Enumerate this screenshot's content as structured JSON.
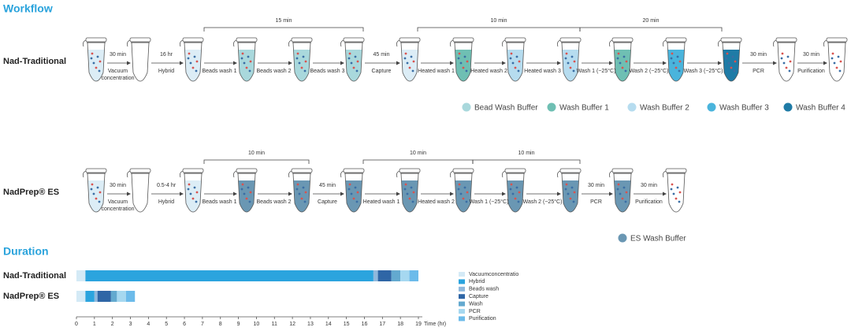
{
  "workflow": {
    "title": "Workflow",
    "traditional": {
      "label": "Nad-Traditional",
      "steps": [
        {
          "time": "30 min",
          "label": [
            "Vacuum",
            "concentration"
          ]
        },
        {
          "time": "16 hr",
          "label": [
            "Hybrid"
          ]
        },
        {
          "label": [
            "Beads wash 1"
          ]
        },
        {
          "label": [
            "Beads wash 2"
          ]
        },
        {
          "label": [
            "Beads wash 3"
          ]
        },
        {
          "time": "45 min",
          "label": [
            "Capture"
          ]
        },
        {
          "label": [
            "Heated wash 1"
          ]
        },
        {
          "label": [
            "Heated wash 2"
          ]
        },
        {
          "label": [
            "Heated wash 3"
          ]
        },
        {
          "label": [
            "Wash 1 (~25°C)"
          ]
        },
        {
          "label": [
            "Wash 2 (~25°C)"
          ]
        },
        {
          "label": [
            "Wash 3 (~25°C)"
          ]
        },
        {
          "time": "30 min",
          "label": [
            "PCR"
          ]
        },
        {
          "time": "30 min",
          "label": [
            "Purification"
          ]
        }
      ],
      "spans": [
        "15 min",
        "10 min",
        "20 min"
      ],
      "legend": [
        {
          "name": "Bead Wash Buffer",
          "color": "#a9d8dc"
        },
        {
          "name": "Wash Buffer 1",
          "color": "#6fbfb3"
        },
        {
          "name": "Wash Buffer 2",
          "color": "#b6dcef"
        },
        {
          "name": "Wash Buffer 3",
          "color": "#4ab4dc"
        },
        {
          "name": "Wash Buffer 4",
          "color": "#1f7ba6"
        }
      ]
    },
    "es": {
      "label": "NadPrep® ES",
      "steps": [
        {
          "time": "30 min",
          "label": [
            "Vacuum",
            "concentration"
          ]
        },
        {
          "time": "0.5-4 hr",
          "label": [
            "Hybrid"
          ]
        },
        {
          "label": [
            "Beads wash 1"
          ]
        },
        {
          "label": [
            "Beads wash 2"
          ]
        },
        {
          "time": "45 min",
          "label": [
            "Capture"
          ]
        },
        {
          "label": [
            "Heated wash 1"
          ]
        },
        {
          "label": [
            "Heated wash 2"
          ]
        },
        {
          "label": [
            "Wash 1 (~25°C)"
          ]
        },
        {
          "label": [
            "Wash 2 (~25°C)"
          ]
        },
        {
          "time": "30 min",
          "label": [
            "PCR"
          ]
        },
        {
          "time": "30 min",
          "label": [
            "Purification"
          ]
        }
      ],
      "spans": [
        "10 min",
        "10 min",
        "10 min"
      ],
      "legend": [
        {
          "name": "ES Wash Buffer",
          "color": "#6a97b3"
        }
      ]
    }
  },
  "duration_title": "Duration",
  "chart_data": {
    "type": "bar",
    "orientation": "horizontal",
    "stacked": true,
    "categories": [
      "Nad-Traditional",
      "NadPrep® ES"
    ],
    "series": [
      {
        "name": "Vacuumconcentratio",
        "color": "#d4eaf6",
        "values": [
          0.5,
          0.5
        ]
      },
      {
        "name": "Hybrid",
        "color": "#2ba4de",
        "values": [
          16,
          0.5
        ]
      },
      {
        "name": "Beads wash",
        "color": "#8fb8dc",
        "values": [
          0.25,
          0.17
        ]
      },
      {
        "name": "Capture",
        "color": "#2f66a6",
        "values": [
          0.75,
          0.75
        ]
      },
      {
        "name": "Wash",
        "color": "#63a9cf",
        "values": [
          0.5,
          0.33
        ]
      },
      {
        "name": "PCR",
        "color": "#a6d8f0",
        "values": [
          0.5,
          0.5
        ]
      },
      {
        "name": "Purification",
        "color": "#6cbbea",
        "values": [
          0.5,
          0.5
        ]
      }
    ],
    "xlim": [
      0,
      19
    ],
    "xticks": [
      0,
      1,
      2,
      3,
      4,
      5,
      6,
      7,
      8,
      9,
      10,
      11,
      12,
      13,
      14,
      15,
      16,
      17,
      18,
      19
    ],
    "xlabel": "Time (hr)"
  }
}
